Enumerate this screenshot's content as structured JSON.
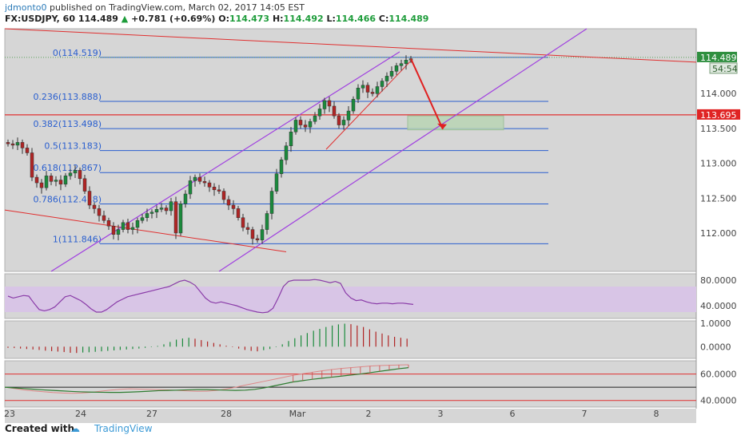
{
  "header": {
    "author": "jdmonto0",
    "published_text": "published on TradingView.com, March 02, 2017 14:05 EST",
    "symbol": "FX:USDJPY, 60",
    "last": "114.489",
    "change_arrow": "▲",
    "change": "+0.781 (+0.69%)",
    "open_label": "O:",
    "open": "114.473",
    "high_label": "H:",
    "high": "114.492",
    "low_label": "L:",
    "low": "114.466",
    "close_label": "C:",
    "close": "114.489"
  },
  "footer": {
    "created_with": "Created with",
    "logo_glyph": "☁",
    "brand": "TradingView"
  },
  "colors": {
    "bull": "#1b8a3c",
    "bear": "#b02525",
    "fib": "#2a5fcf",
    "channel": "#a040e0",
    "trend": "#e03030",
    "arrow": "#e02020",
    "box": "#b7d5b2",
    "rsi_band": "#d8c5e6",
    "ind_line": "#8a3ca8"
  },
  "chart_data": {
    "type": "candlestick",
    "main_pane": {
      "ylim": [
        111.45,
        114.93
      ],
      "y_ticks": [
        "114.000",
        "113.500",
        "113.000",
        "112.500",
        "112.000"
      ],
      "y_tick_values": [
        114.0,
        113.5,
        113.0,
        112.5,
        112.0
      ],
      "x_ticks": [
        "23",
        "24",
        "27",
        "28",
        "Mar",
        "2",
        "3",
        "6",
        "7",
        "8"
      ],
      "last_price_label": "114.489",
      "countdown_label": "54:54",
      "level_label": "113.695",
      "level_value": 113.695,
      "fib_levels": [
        {
          "label": "0(114.519)",
          "value": 114.519
        },
        {
          "label": "0.236(113.888)",
          "value": 113.888
        },
        {
          "label": "0.382(113.498)",
          "value": 113.498
        },
        {
          "label": "0.5(113.183)",
          "value": 113.183
        },
        {
          "label": "0.618(112.867)",
          "value": 112.867
        },
        {
          "label": "0.786(112.418)",
          "value": 112.418
        },
        {
          "label": "1(111.846)",
          "value": 111.846
        }
      ],
      "closes": [
        113.28,
        113.26,
        113.3,
        113.22,
        113.15,
        112.8,
        112.72,
        112.65,
        112.82,
        112.74,
        112.76,
        112.7,
        112.82,
        112.86,
        112.9,
        112.78,
        112.6,
        112.4,
        112.35,
        112.25,
        112.18,
        112.1,
        111.98,
        112.05,
        112.15,
        112.05,
        112.08,
        112.18,
        112.22,
        112.28,
        112.3,
        112.34,
        112.36,
        112.32,
        112.45,
        112.0,
        112.42,
        112.56,
        112.75,
        112.8,
        112.74,
        112.72,
        112.66,
        112.62,
        112.6,
        112.48,
        112.4,
        112.35,
        112.22,
        112.08,
        112.05,
        111.92,
        111.9,
        112.05,
        112.28,
        112.6,
        112.85,
        113.05,
        113.25,
        113.45,
        113.62,
        113.55,
        113.52,
        113.6,
        113.68,
        113.78,
        113.9,
        113.82,
        113.68,
        113.55,
        113.62,
        113.75,
        113.92,
        114.08,
        114.12,
        114.02,
        114.0,
        114.1,
        114.18,
        114.25,
        114.32,
        114.4,
        114.43,
        114.48,
        114.5
      ],
      "price_axis_scale": "linear",
      "grid": false
    },
    "rsi_pane": {
      "y_ticks": [
        "80.0000",
        "40.0000"
      ],
      "band": [
        30,
        70
      ],
      "values": [
        55,
        52,
        54,
        56,
        55,
        44,
        34,
        32,
        34,
        38,
        46,
        54,
        56,
        52,
        48,
        42,
        35,
        30,
        30,
        34,
        40,
        46,
        50,
        54,
        56,
        58,
        60,
        62,
        64,
        66,
        68,
        70,
        74,
        78,
        80,
        77,
        72,
        62,
        52,
        46,
        44,
        46,
        44,
        42,
        40,
        37,
        34,
        32,
        30,
        29,
        30,
        36,
        52,
        70,
        78,
        80,
        80,
        80,
        80,
        81,
        80,
        78,
        76,
        78,
        75,
        60,
        52,
        48,
        49,
        46,
        44,
        43,
        44,
        44,
        43,
        44,
        44,
        43,
        42
      ]
    },
    "macd_pane": {
      "y_ticks": [
        "1.0000",
        "0.0000"
      ],
      "ylim": [
        -0.5,
        1.1
      ],
      "histogram": [
        -0.05,
        -0.06,
        -0.08,
        -0.1,
        -0.12,
        -0.14,
        -0.17,
        -0.19,
        -0.21,
        -0.23,
        -0.26,
        -0.27,
        -0.25,
        -0.24,
        -0.22,
        -0.2,
        -0.18,
        -0.16,
        -0.14,
        -0.12,
        -0.1,
        -0.08,
        -0.05,
        -0.02,
        0.03,
        0.1,
        0.2,
        0.3,
        0.35,
        0.38,
        0.34,
        0.28,
        0.22,
        0.16,
        0.1,
        0.04,
        -0.02,
        -0.08,
        -0.14,
        -0.18,
        -0.2,
        -0.15,
        -0.1,
        -0.02,
        0.1,
        0.24,
        0.36,
        0.48,
        0.58,
        0.68,
        0.76,
        0.84,
        0.9,
        0.95,
        0.98,
        0.96,
        0.9,
        0.84,
        0.74,
        0.64,
        0.56,
        0.48,
        0.42,
        0.38,
        0.34
      ]
    },
    "osc_pane": {
      "y_ticks": [
        "60.0000",
        "40.0000"
      ],
      "ylim": [
        35,
        70
      ],
      "upper_level": 60,
      "mid_level": 50,
      "lower_level": 40,
      "green_line": [
        50,
        49.5,
        49,
        48.5,
        48,
        47.6,
        47.2,
        46.8,
        46.5,
        46.3,
        46.2,
        46.1,
        46.1,
        46.3,
        46.6,
        47.0,
        47.4,
        47.6,
        47.8,
        48.0,
        48.2,
        48.2,
        48.0,
        47.8,
        47.6,
        47.8,
        48.4,
        49.5,
        51.0,
        52.5,
        54.0,
        55.0,
        56.0,
        56.8,
        57.6,
        58.4,
        59.2,
        60.0,
        61.0,
        62.0,
        63.0,
        64.0,
        64.8
      ],
      "red_line": [
        50,
        49.0,
        48.0,
        47.2,
        46.6,
        46.0,
        45.6,
        45.4,
        45.6,
        46.2,
        47.0,
        47.8,
        48.4,
        48.8,
        48.6,
        48.4,
        48.2,
        48.0,
        47.6,
        47.2,
        46.9,
        47.0,
        47.6,
        48.6,
        50.0,
        51.6,
        53.0,
        54.5,
        56.0,
        57.5,
        59.0,
        60.2,
        61.3,
        62.4,
        63.4,
        64.2,
        64.8,
        65.4,
        66.0,
        66.4,
        66.6,
        66.8,
        67.0
      ]
    }
  }
}
